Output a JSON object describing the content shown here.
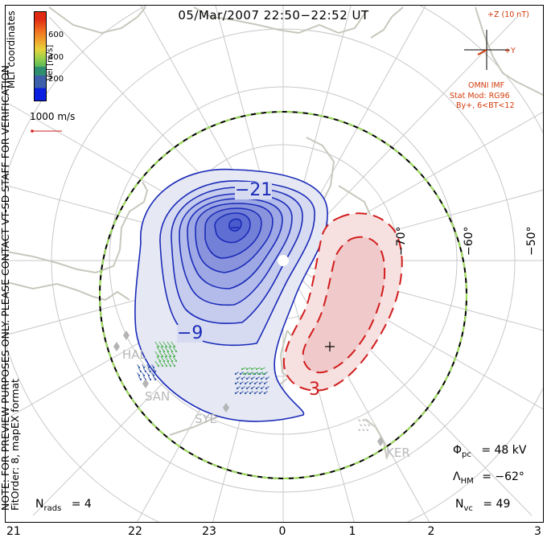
{
  "title": "05/Mar/2007 22:50−22:52 UT",
  "coords_label": "MLT coordinates",
  "vertical_note_line1": "NOTE: FOR PREVIEW PURPOSES ONLY. PLEASE CONTACT VT-SD STAFF FOR VERIFICATION.",
  "vertical_note_line2": "FitOrder: 8, mapEX format",
  "colorbar": {
    "label": "Vel [m/s]",
    "ticks": [
      "600",
      "400",
      "200"
    ],
    "colors": [
      "#0a1fe0",
      "#3d5ea8",
      "#2f8e6f",
      "#56b85a",
      "#9bd14a",
      "#e8d23a",
      "#f0a12c",
      "#ef6a1f",
      "#e02a14"
    ]
  },
  "velocity_ref": "1000 m/s",
  "imf": {
    "z_label": "+Z (10 nT)",
    "y_label": "+Y",
    "omni": "OMNI IMF",
    "stat_mod": "Stat Mod: RG96",
    "stat_cond": "By+, 6<BT<12"
  },
  "latitude_labels": [
    "−70°",
    "−60°",
    "−50°"
  ],
  "contour_labels": [
    "−21",
    "−9",
    "3"
  ],
  "stations": [
    "HAL",
    "SAN",
    "SYE",
    "KER"
  ],
  "mlt_ticks": [
    "21",
    "22",
    "23",
    "0",
    "1",
    "2",
    "3"
  ],
  "stats": {
    "pcp_symbol": "Φ",
    "pcp_sub": "pc",
    "pcp_value": "= 48 kV",
    "hm_symbol": "Λ",
    "hm_sub": "HM",
    "hm_value": "= −62°",
    "nvc_symbol": "N",
    "nvc_sub": "vc",
    "nvc_value": "= 49",
    "nrads_symbol": "N",
    "nrads_sub": "rads",
    "nrads_value": "= 4"
  },
  "colors": {
    "negative_line": "#1a2bb8",
    "positive_line": "#d21c1c",
    "coastline": "#c8c8be",
    "grid": "#c8c8c8",
    "boundary_dash": "#9ee05a",
    "imf": "#d23a0a"
  }
}
